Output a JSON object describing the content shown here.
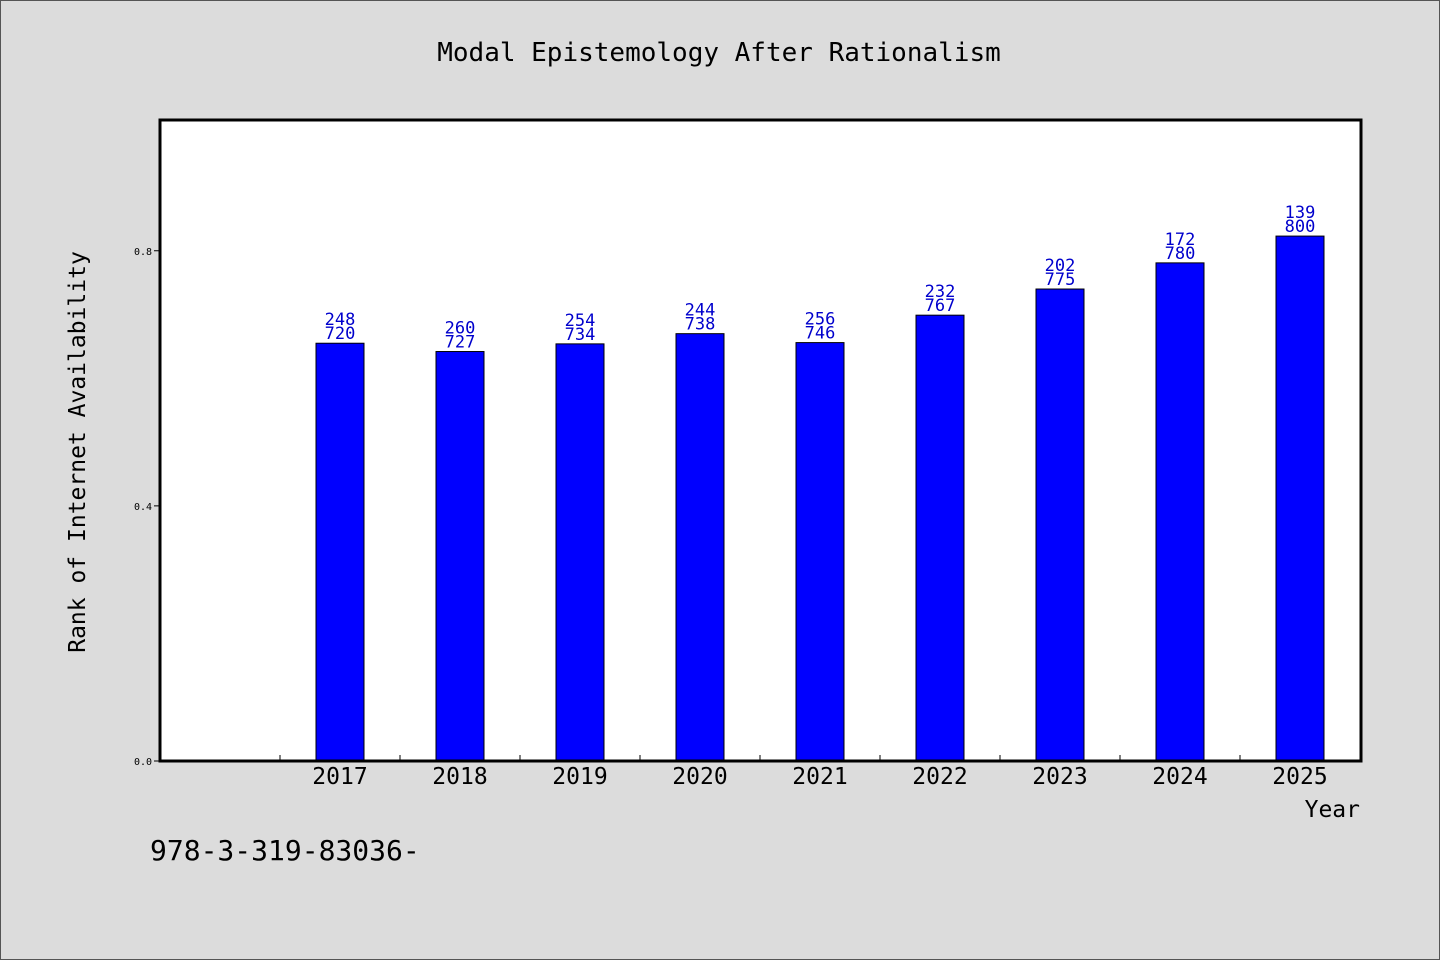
{
  "chart_data": {
    "type": "bar",
    "title": "Modal Epistemology After Rationalism",
    "xlabel": "Year",
    "ylabel": "Rank of Internet Availability",
    "categories": [
      "2017",
      "2018",
      "2019",
      "2020",
      "2021",
      "2022",
      "2023",
      "2024",
      "2025"
    ],
    "values": [
      0.655,
      0.642,
      0.654,
      0.67,
      0.656,
      0.699,
      0.74,
      0.781,
      0.823
    ],
    "labels_top": [
      "248",
      "260",
      "254",
      "244",
      "256",
      "232",
      "202",
      "172",
      "139"
    ],
    "labels_bottom": [
      "720",
      "727",
      "734",
      "738",
      "746",
      "767",
      "775",
      "780",
      "800"
    ],
    "yticks": [
      "0.0",
      "0.4",
      "0.8"
    ],
    "ylim": [
      0,
      1.005
    ],
    "grid": false,
    "colors": {
      "bar": "#0000ff",
      "bar_label": "#0000cc",
      "plot_background": "#ffffff",
      "figure_background": "#dcdcdc"
    }
  },
  "footer": {
    "isbn": "978-3-319-83036-"
  }
}
